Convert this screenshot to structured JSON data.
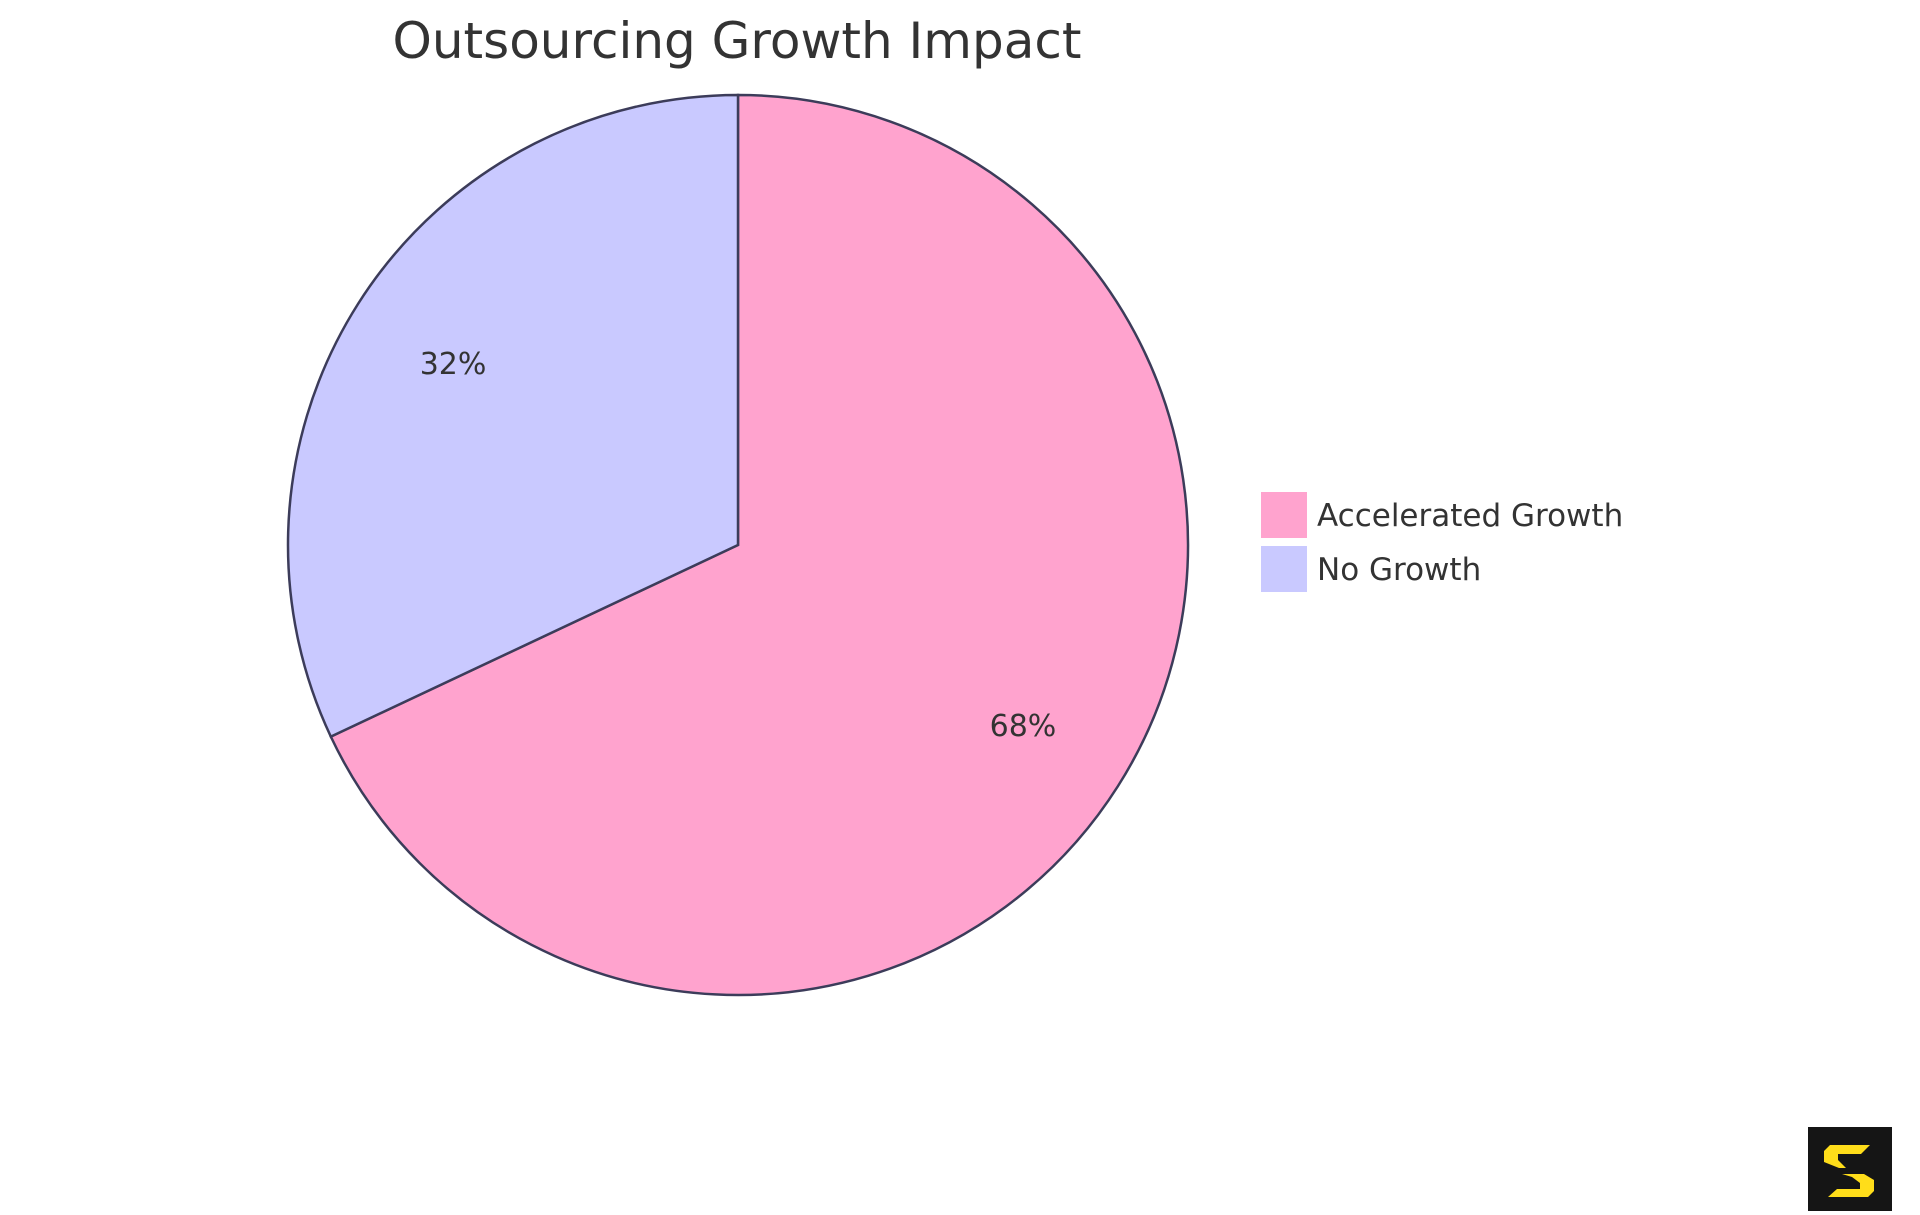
{
  "chart_data": {
    "type": "pie",
    "title": "Outsourcing Growth Impact",
    "slices": [
      {
        "name": "Accelerated Growth",
        "value": 68,
        "label": "68%",
        "color": "#FFA3CE"
      },
      {
        "name": "No Growth",
        "value": 32,
        "label": "32%",
        "color": "#C9C9FF"
      }
    ],
    "stroke_color": "#3C3C5A",
    "start": "top",
    "direction": "clockwise",
    "legend_position": "right"
  }
}
